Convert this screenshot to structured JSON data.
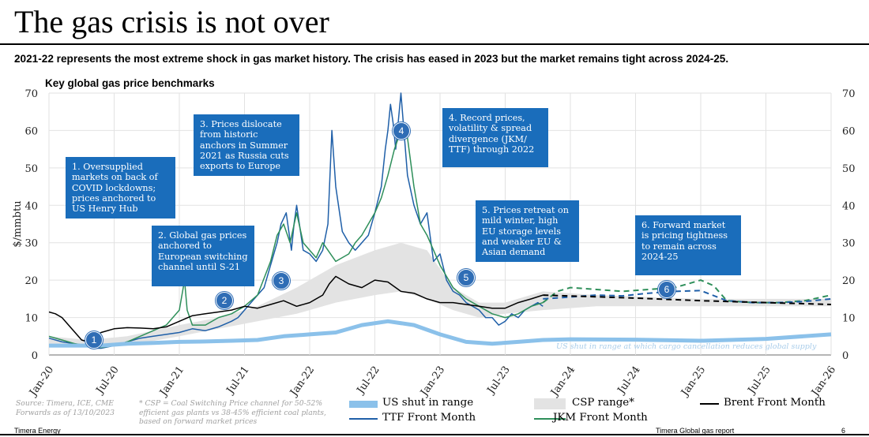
{
  "header": {
    "title": "The gas crisis is not over",
    "subtitle": "2021-22 represents the most extreme shock in gas market history. The crisis has eased in 2023 but the market remains tight across 2024-25."
  },
  "chart_data": {
    "type": "line",
    "title": "Key global gas price benchmarks",
    "ylabel": "$/mmbtu",
    "ylim": [
      0,
      70
    ],
    "yticks": [
      "0",
      "10",
      "20",
      "30",
      "40",
      "50",
      "60",
      "70"
    ],
    "xticks": [
      "Jan-20",
      "Jul-20",
      "Jan-21",
      "Jul-21",
      "Jan-22",
      "Jul-22",
      "Jan-23",
      "Jul-23",
      "Jan-24",
      "Jul-24",
      "Jan-25",
      "Jul-25",
      "Jan-26"
    ],
    "xrange": [
      2020.0,
      2026.0
    ],
    "forward_start": 2023.79,
    "series": [
      {
        "name": "TTF Front Month",
        "color": "#1f5fa8",
        "t": [
          2020.0,
          2020.1,
          2020.2,
          2020.3,
          2020.35,
          2020.4,
          2020.5,
          2020.6,
          2020.7,
          2020.8,
          2020.9,
          2021.0,
          2021.1,
          2021.2,
          2021.3,
          2021.4,
          2021.45,
          2021.5,
          2021.55,
          2021.6,
          2021.65,
          2021.7,
          2021.75,
          2021.78,
          2021.82,
          2021.86,
          2021.88,
          2021.9,
          2021.95,
          2022.0,
          2022.05,
          2022.1,
          2022.14,
          2022.17,
          2022.2,
          2022.25,
          2022.3,
          2022.35,
          2022.4,
          2022.45,
          2022.5,
          2022.55,
          2022.58,
          2022.6,
          2022.62,
          2022.64,
          2022.66,
          2022.7,
          2022.75,
          2022.8,
          2022.85,
          2022.9,
          2022.95,
          2023.0,
          2023.05,
          2023.1,
          2023.15,
          2023.2,
          2023.25,
          2023.3,
          2023.35,
          2023.4,
          2023.45,
          2023.5,
          2023.55,
          2023.6,
          2023.65,
          2023.7,
          2023.75,
          2023.79
        ],
        "v": [
          4.5,
          3.5,
          3,
          2.3,
          1.8,
          1.8,
          2.5,
          3.5,
          4.5,
          5,
          5.5,
          6,
          7,
          6.5,
          7.5,
          9,
          10,
          12,
          14,
          16,
          18,
          24,
          30,
          35,
          38,
          28,
          35,
          40,
          28,
          27,
          25,
          28,
          35,
          60,
          45,
          33,
          30,
          28,
          30,
          32,
          38,
          45,
          55,
          60,
          67,
          62,
          55,
          70,
          48,
          40,
          35,
          38,
          25,
          27,
          20,
          17,
          16,
          14,
          13,
          12,
          10,
          10,
          8,
          9,
          11,
          10,
          12,
          13,
          14,
          13
        ]
      },
      {
        "name": "JKM Front Month",
        "color": "#2e8f5a",
        "t": [
          2020.0,
          2020.1,
          2020.2,
          2020.3,
          2020.4,
          2020.5,
          2020.6,
          2020.7,
          2020.8,
          2020.9,
          2021.0,
          2021.02,
          2021.04,
          2021.06,
          2021.1,
          2021.2,
          2021.3,
          2021.4,
          2021.5,
          2021.6,
          2021.7,
          2021.75,
          2021.8,
          2021.85,
          2021.9,
          2021.95,
          2022.0,
          2022.05,
          2022.1,
          2022.2,
          2022.3,
          2022.35,
          2022.4,
          2022.5,
          2022.55,
          2022.6,
          2022.65,
          2022.7,
          2022.75,
          2022.8,
          2022.85,
          2022.9,
          2022.95,
          2023.0,
          2023.1,
          2023.2,
          2023.3,
          2023.4,
          2023.5,
          2023.6,
          2023.7,
          2023.79
        ],
        "v": [
          5,
          4,
          3,
          2.5,
          2,
          2.5,
          3.5,
          5,
          6.5,
          8,
          12,
          16,
          20,
          12,
          8,
          8,
          10,
          11,
          13,
          16,
          25,
          32,
          35,
          30,
          38,
          30,
          28,
          26,
          30,
          25,
          27,
          30,
          32,
          38,
          42,
          48,
          55,
          60,
          58,
          45,
          35,
          32,
          28,
          24,
          18,
          15,
          13,
          11,
          10,
          11,
          13,
          14
        ]
      },
      {
        "name": "Brent Front Month",
        "color": "#000000",
        "t": [
          2020.0,
          2020.05,
          2020.1,
          2020.15,
          2020.2,
          2020.25,
          2020.3,
          2020.35,
          2020.4,
          2020.5,
          2020.6,
          2020.7,
          2020.8,
          2020.9,
          2021.0,
          2021.1,
          2021.2,
          2021.3,
          2021.4,
          2021.5,
          2021.6,
          2021.7,
          2021.8,
          2021.9,
          2022.0,
          2022.1,
          2022.15,
          2022.2,
          2022.3,
          2022.4,
          2022.5,
          2022.6,
          2022.7,
          2022.8,
          2022.9,
          2023.0,
          2023.1,
          2023.2,
          2023.3,
          2023.4,
          2023.5,
          2023.6,
          2023.7,
          2023.79
        ],
        "v": [
          11.5,
          11,
          10,
          8,
          6,
          4,
          3.5,
          5,
          6,
          7,
          7.3,
          7.2,
          7,
          7.5,
          9,
          10.5,
          11,
          11.5,
          12,
          13,
          12.5,
          13.5,
          14.5,
          13,
          14,
          16,
          19,
          21,
          19,
          18,
          20,
          19.5,
          17,
          16.5,
          15,
          14,
          14,
          13.5,
          13,
          12.5,
          12.5,
          14,
          15,
          16
        ]
      },
      {
        "name": "JKM Forward",
        "dashed": true,
        "color": "#2e8f5a",
        "t": [
          2023.79,
          2023.9,
          2024.0,
          2024.2,
          2024.4,
          2024.6,
          2024.8,
          2024.9,
          2025.0,
          2025.1,
          2025.2,
          2025.4,
          2025.6,
          2025.8,
          2026.0
        ],
        "v": [
          14,
          17,
          18,
          17.5,
          17,
          17.5,
          18,
          19,
          20,
          18.5,
          14.5,
          14,
          14,
          14.5,
          16
        ]
      },
      {
        "name": "TTF Forward",
        "dashed": true,
        "color": "#1f5fa8",
        "t": [
          2023.79,
          2024.0,
          2024.2,
          2024.4,
          2024.6,
          2024.8,
          2025.0,
          2025.2,
          2025.4,
          2025.6,
          2025.8,
          2026.0
        ],
        "v": [
          15,
          15.5,
          16,
          15.8,
          16.5,
          17,
          17.2,
          14.5,
          14,
          14,
          14.3,
          15
        ]
      },
      {
        "name": "Brent Forward",
        "dashed": true,
        "color": "#000000",
        "t": [
          2023.79,
          2024.5,
          2025.0,
          2025.5,
          2026.0
        ],
        "v": [
          16,
          15.2,
          14.5,
          14,
          13.5
        ]
      },
      {
        "name": "US shut in range",
        "color": "#8bc1ea",
        "t": [
          2020.0,
          2020.2,
          2020.4,
          2020.6,
          2020.8,
          2021.0,
          2021.2,
          2021.4,
          2021.6,
          2021.8,
          2022.0,
          2022.2,
          2022.4,
          2022.6,
          2022.8,
          2023.0,
          2023.2,
          2023.4,
          2023.6,
          2023.79,
          2024.0,
          2024.5,
          2025.0,
          2025.5,
          2026.0
        ],
        "v": [
          2.5,
          2.5,
          2.5,
          3,
          3.2,
          3.5,
          3.6,
          3.8,
          4,
          5,
          5.5,
          6,
          8,
          9,
          8,
          5.5,
          3.5,
          3,
          3.5,
          4,
          4.2,
          4.1,
          3.8,
          4.3,
          5.5
        ]
      }
    ],
    "bands": [
      {
        "name": "CSP range*",
        "color": "#e3e3e3",
        "t": [
          2020.0,
          2020.3,
          2020.6,
          2021.0,
          2021.3,
          2021.6,
          2021.9,
          2022.2,
          2022.5,
          2022.7,
          2022.9,
          2023.1,
          2023.3,
          2023.5,
          2023.79,
          2024.2,
          2024.6,
          2025.0,
          2025.4,
          2025.8,
          2026.0
        ],
        "lo": [
          3,
          2,
          2.5,
          5,
          7,
          9,
          11,
          14,
          16,
          17,
          15,
          12,
          10,
          11,
          12,
          13,
          13,
          13,
          13,
          13,
          13
        ],
        "hi": [
          5,
          4,
          5,
          8,
          10,
          13,
          18,
          24,
          28,
          30,
          28,
          18,
          14,
          14,
          17,
          16,
          15.5,
          15,
          15,
          15,
          15
        ]
      }
    ],
    "legend": [
      "US shut in range",
      "CSP range*",
      "Brent Front Month",
      "TTF Front Month",
      "JKM Front Month"
    ],
    "annotations": [
      {
        "id": "1",
        "text": "1. Oversupplied\nmarkets on back of\nCOVID lockdowns;\nprices anchored to\nUS Henry Hub"
      },
      {
        "id": "2",
        "text": "2. Global gas prices\nanchored to\nEuropean switching\nchannel until S-21"
      },
      {
        "id": "3",
        "text": "3. Prices dislocate\nfrom historic\nanchors in Summer\n2021 as Russia cuts\nexports to Europe"
      },
      {
        "id": "4",
        "text": "4. Record prices,\nvolatility & spread\ndivergence (JKM/\nTTF) through 2022"
      },
      {
        "id": "5",
        "text": "5. Prices retreat on\nmild winter, high\nEU storage levels\nand weaker EU &\nAsian demand"
      },
      {
        "id": "6",
        "text": "6. Forward market\nis pricing tightness\nto remain across\n2024-25"
      }
    ],
    "us_note": "US shut in range at which cargo cancellation reduces global supply"
  },
  "notes": {
    "source": "Source: Timera, ICE, CME\nForwards as of 13/10/2023",
    "csp": "* CSP = Coal Switching Price channel for 50-52%\nefficient gas plants vs 38-45% efficient coal plants,\nbased on forward market prices"
  },
  "footer": {
    "left": "Timera Energy",
    "right": "Timera Global gas report",
    "page": "6"
  },
  "colors": {
    "callout": "#1a6dbb",
    "ttf": "#1f5fa8",
    "jkm": "#2e8f5a",
    "brent": "#000000",
    "us": "#8bc1ea",
    "csp": "#e3e3e3"
  }
}
